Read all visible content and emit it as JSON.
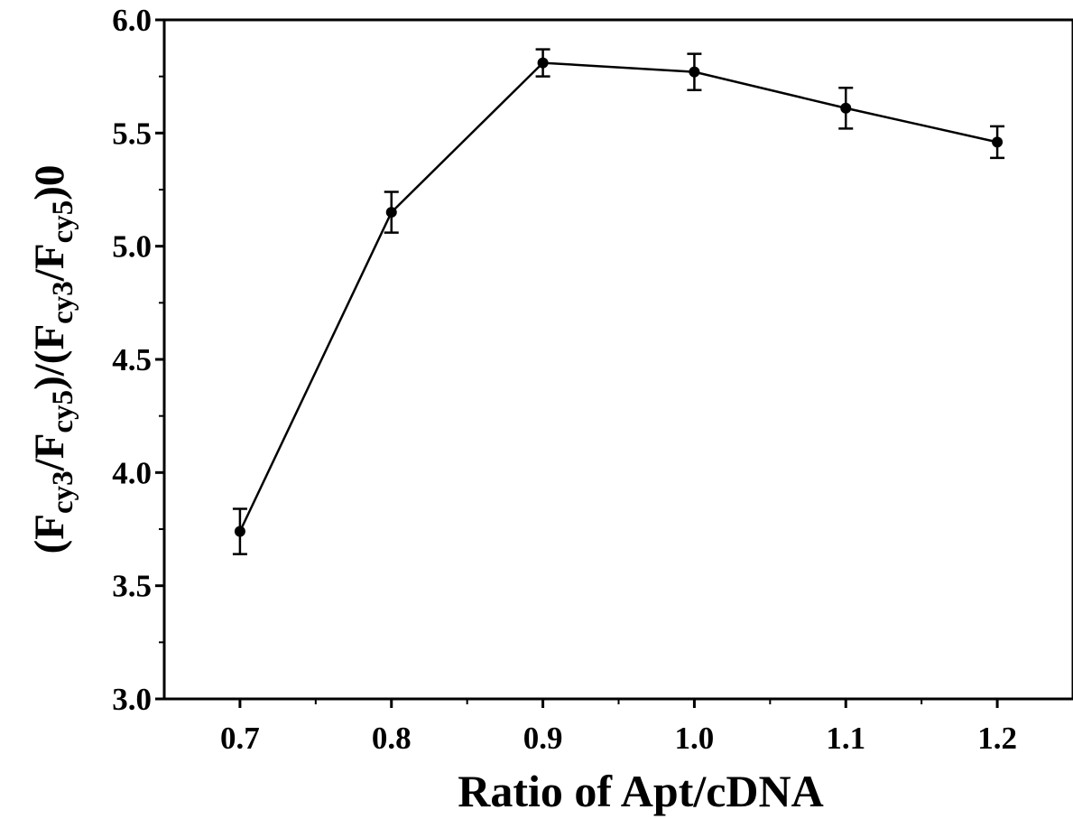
{
  "chart_data": {
    "type": "line",
    "xlabel": "Ratio of Apt/cDNA",
    "ylabel": {
      "prefix": "(F",
      "sub1": "cy3",
      "mid1": "/F",
      "sub2": "cy5",
      "mid2": ")/(F",
      "sub3": "cy3",
      "mid3": "/F",
      "sub4": "cy5",
      "suffix": ")0"
    },
    "xlim": [
      0.65,
      1.25
    ],
    "ylim": [
      3.0,
      6.0
    ],
    "xticks": [
      0.7,
      0.8,
      0.9,
      1.0,
      1.1,
      1.2
    ],
    "xtick_labels": [
      "0.7",
      "0.8",
      "0.9",
      "1.0",
      "1.1",
      "1.2"
    ],
    "yticks": [
      3.0,
      3.5,
      4.0,
      4.5,
      5.0,
      5.5,
      6.0
    ],
    "ytick_labels": [
      "3.0",
      "3.5",
      "4.0",
      "4.5",
      "5.0",
      "5.5",
      "6.0"
    ],
    "grid": false,
    "series": [
      {
        "x": [
          0.7,
          0.8,
          0.9,
          1.0,
          1.1,
          1.2
        ],
        "y": [
          3.74,
          5.15,
          5.81,
          5.77,
          5.61,
          5.46
        ],
        "error": [
          0.1,
          0.09,
          0.06,
          0.08,
          0.09,
          0.07
        ],
        "color": "#000000"
      }
    ]
  }
}
